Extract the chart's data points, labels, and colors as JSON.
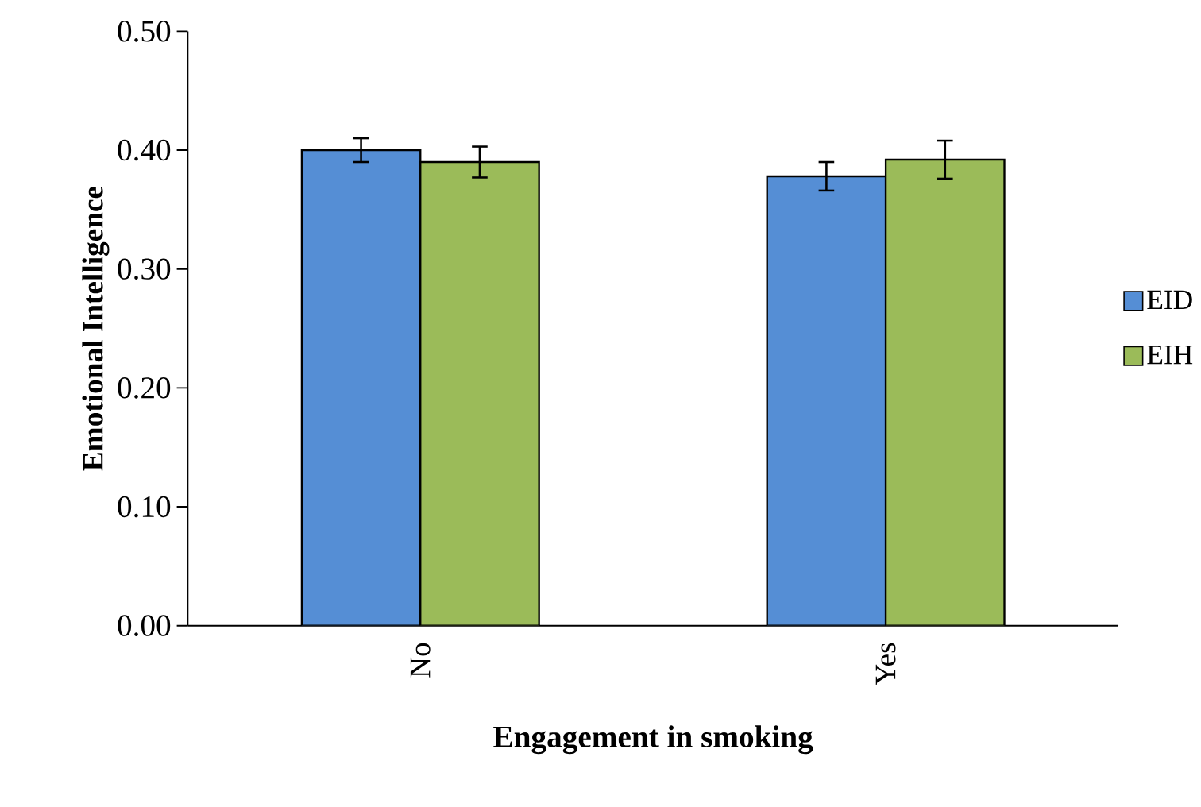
{
  "chart_data": {
    "type": "bar",
    "xlabel": "Engagement in smoking",
    "ylabel": "Emotional Intelligence",
    "categories": [
      "No",
      "Yes"
    ],
    "series": [
      {
        "name": "EID",
        "color": "#558ed5",
        "values": [
          0.4,
          0.378
        ],
        "errors": [
          0.01,
          0.012
        ]
      },
      {
        "name": "EIH",
        "color": "#9bbb59",
        "values": [
          0.39,
          0.392
        ],
        "errors": [
          0.013,
          0.016
        ]
      }
    ],
    "ylim": [
      0,
      0.5
    ],
    "yticks": [
      {
        "value": 0,
        "label": "0.00"
      },
      {
        "value": 0.1,
        "label": "0.10"
      },
      {
        "value": 0.2,
        "label": "0.20"
      },
      {
        "value": 0.3,
        "label": "0.30"
      },
      {
        "value": 0.4,
        "label": "0.40"
      },
      {
        "value": 0.5,
        "label": "0.50"
      }
    ],
    "grid": false,
    "legend": "right"
  }
}
